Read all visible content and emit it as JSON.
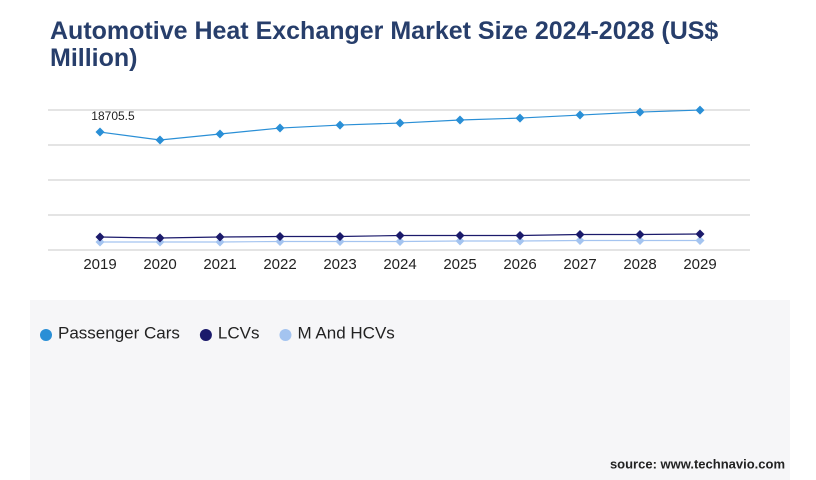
{
  "chart_data": {
    "type": "line",
    "title": "Automotive Heat Exchanger Market Size 2024-2028 (US$ Million)",
    "categories": [
      "2019",
      "2020",
      "2021",
      "2022",
      "2023",
      "2024",
      "2025",
      "2026",
      "2027",
      "2028",
      "2029"
    ],
    "series": [
      {
        "name": "Passenger Cars",
        "color": "#2a8fd6",
        "values": [
          18705.5,
          17440,
          18390,
          19340,
          19810,
          20130,
          20610,
          20920,
          21400,
          21870,
          22190
        ],
        "data_label_indices": [
          0
        ]
      },
      {
        "name": "LCVs",
        "color": "#1b1a6b",
        "values": [
          2060,
          1900,
          2060,
          2140,
          2140,
          2300,
          2300,
          2300,
          2460,
          2460,
          2540
        ]
      },
      {
        "name": "M And HCVs",
        "color": "#a4c4f0",
        "values": [
          1270,
          1270,
          1270,
          1350,
          1350,
          1350,
          1430,
          1430,
          1510,
          1510,
          1510
        ]
      }
    ],
    "ylim": [
      0,
      22200
    ],
    "yticks": [
      0,
      5550,
      11100,
      16650,
      22200
    ],
    "grid": true,
    "ytick_labels": false,
    "legend": "bottom-left",
    "source": "source: www.technavio.com"
  }
}
